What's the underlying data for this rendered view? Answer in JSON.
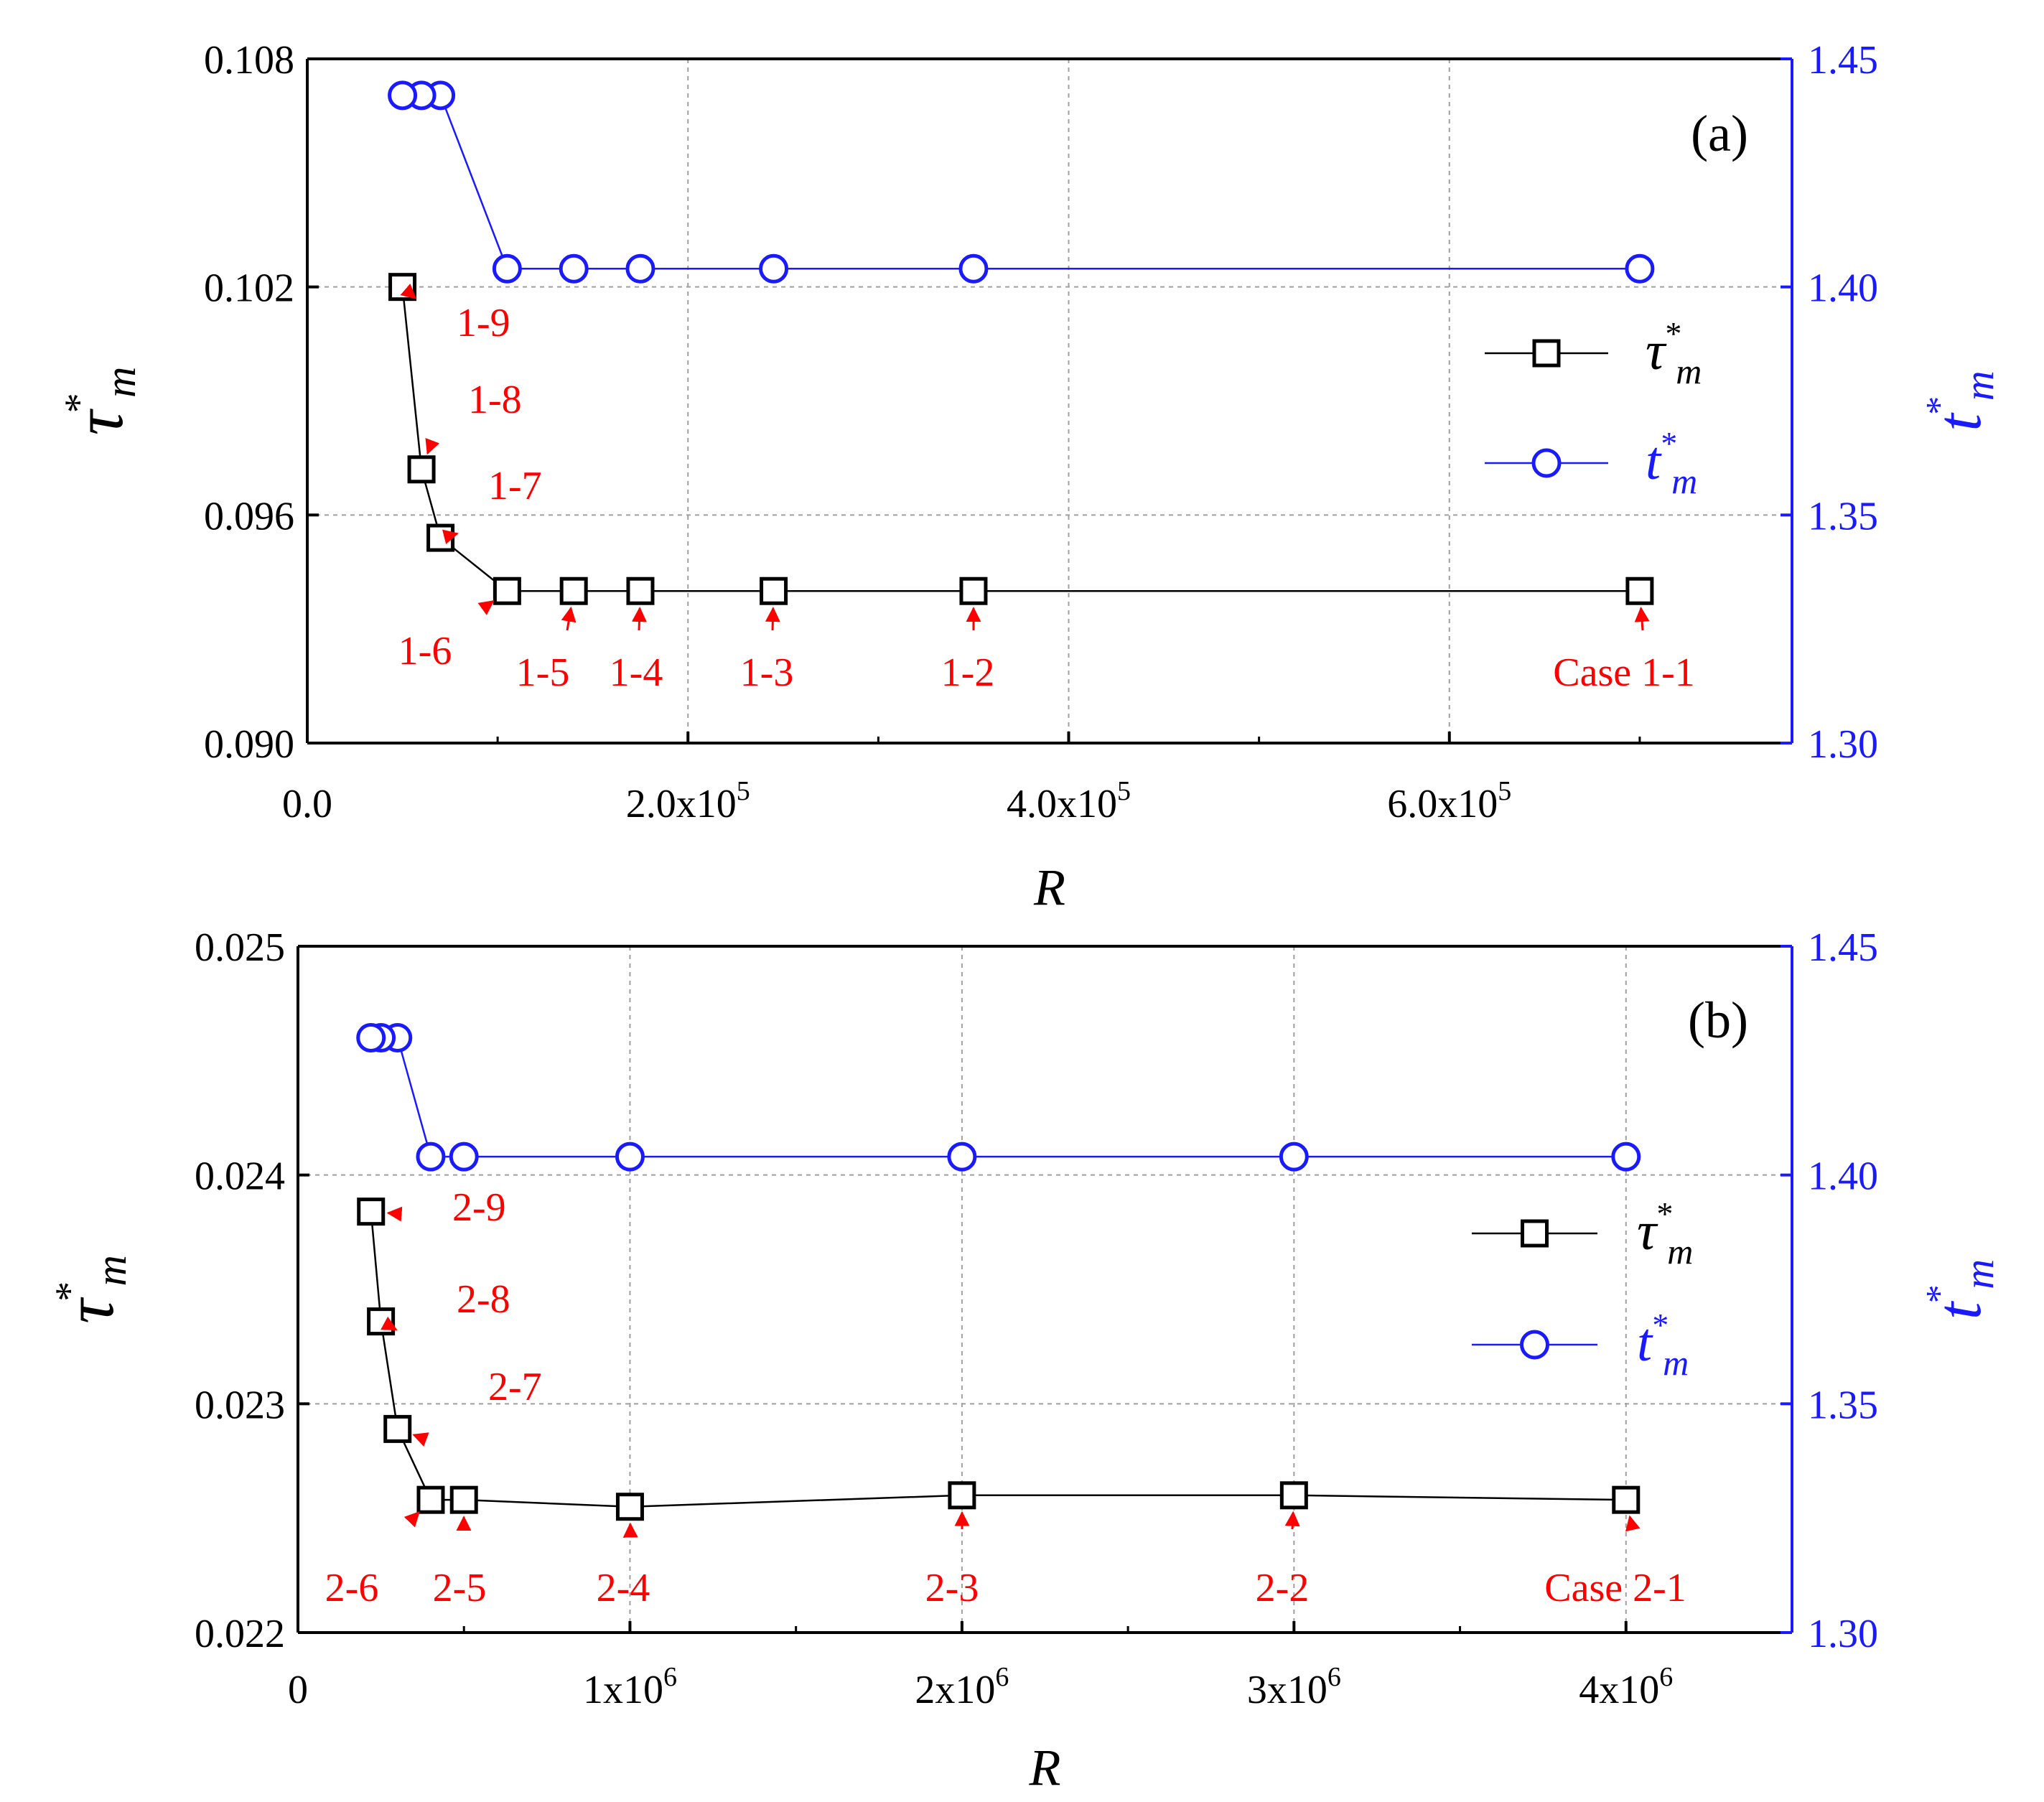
{
  "chart_data": [
    {
      "type": "line",
      "panel_label": "(a)",
      "xlabel": "R",
      "ylabel_left": {
        "symbol": "τ",
        "sup": "*",
        "sub": "m"
      },
      "ylabel_right": {
        "symbol": "t",
        "sup": "*",
        "sub": "m"
      },
      "xlim": [
        0,
        780000
      ],
      "ylim_left": [
        0.09,
        0.108
      ],
      "ylim_right": [
        1.3,
        1.45
      ],
      "x_ticks": [
        {
          "value": 0,
          "mantissa": "0.0",
          "exp": ""
        },
        {
          "value": 200000,
          "mantissa": "2.0x10",
          "exp": "5"
        },
        {
          "value": 400000,
          "mantissa": "4.0x10",
          "exp": "5"
        },
        {
          "value": 600000,
          "mantissa": "6.0x10",
          "exp": "5"
        }
      ],
      "y_ticks_left": [
        "0.090",
        "0.096",
        "0.102",
        "0.108"
      ],
      "y_ticks_right": [
        "1.30",
        "1.35",
        "1.40",
        "1.45"
      ],
      "series": [
        {
          "name": "tau_m",
          "color": "#000000",
          "marker": "square",
          "axis": "left",
          "x": [
            700000,
            350000,
            245000,
            175000,
            140000,
            105000,
            70000,
            60000,
            50000
          ],
          "y": [
            0.094,
            0.094,
            0.094,
            0.094,
            0.094,
            0.094,
            0.0954,
            0.0972,
            0.102
          ]
        },
        {
          "name": "t_m",
          "color": "#1a1aff",
          "marker": "circle",
          "axis": "right",
          "x": [
            700000,
            350000,
            245000,
            175000,
            140000,
            105000,
            70000,
            60000,
            50000
          ],
          "y": [
            1.404,
            1.404,
            1.404,
            1.404,
            1.404,
            1.404,
            1.442,
            1.442,
            1.442
          ]
        }
      ],
      "annotations": [
        {
          "text": "Case 1-1",
          "point": 0
        },
        {
          "text": "1-2",
          "point": 1
        },
        {
          "text": "1-3",
          "point": 2
        },
        {
          "text": "1-4",
          "point": 3
        },
        {
          "text": "1-5",
          "point": 4
        },
        {
          "text": "1-6",
          "point": 5
        },
        {
          "text": "1-7",
          "point": 6
        },
        {
          "text": "1-8",
          "point": 7
        },
        {
          "text": "1-9",
          "point": 8
        }
      ]
    },
    {
      "type": "line",
      "panel_label": "(b)",
      "xlabel": "R",
      "ylabel_left": {
        "symbol": "τ",
        "sup": "*",
        "sub": "m"
      },
      "ylabel_right": {
        "symbol": "t",
        "sup": "*",
        "sub": "m"
      },
      "xlim": [
        0,
        4500000
      ],
      "ylim_left": [
        0.022,
        0.025
      ],
      "ylim_right": [
        1.3,
        1.45
      ],
      "x_ticks": [
        {
          "value": 0,
          "mantissa": "0",
          "exp": ""
        },
        {
          "value": 1000000,
          "mantissa": "1x10",
          "exp": "6"
        },
        {
          "value": 2000000,
          "mantissa": "2x10",
          "exp": "6"
        },
        {
          "value": 3000000,
          "mantissa": "3x10",
          "exp": "6"
        },
        {
          "value": 4000000,
          "mantissa": "4x10",
          "exp": "6"
        }
      ],
      "y_ticks_left": [
        "0.022",
        "0.023",
        "0.024",
        "0.025"
      ],
      "y_ticks_right": [
        "1.30",
        "1.35",
        "1.40",
        "1.45"
      ],
      "series": [
        {
          "name": "tau_m",
          "color": "#000000",
          "marker": "square",
          "axis": "left",
          "x": [
            4000000,
            3000000,
            2000000,
            1000000,
            500000,
            400000,
            300000,
            250000,
            220000
          ],
          "y": [
            0.02258,
            0.0226,
            0.0226,
            0.02255,
            0.02258,
            0.02258,
            0.02289,
            0.02336,
            0.02384
          ]
        },
        {
          "name": "t_m",
          "color": "#1a1aff",
          "marker": "circle",
          "axis": "right",
          "x": [
            4000000,
            3000000,
            2000000,
            1000000,
            500000,
            400000,
            300000,
            250000,
            220000
          ],
          "y": [
            1.404,
            1.404,
            1.404,
            1.404,
            1.404,
            1.404,
            1.43,
            1.43,
            1.43
          ]
        }
      ],
      "annotations": [
        {
          "text": "Case 2-1",
          "point": 0
        },
        {
          "text": "2-2",
          "point": 1
        },
        {
          "text": "2-3",
          "point": 2
        },
        {
          "text": "2-4",
          "point": 3
        },
        {
          "text": "2-5",
          "point": 4
        },
        {
          "text": "2-6",
          "point": 5
        },
        {
          "text": "2-7",
          "point": 6
        },
        {
          "text": "2-8",
          "point": 7
        },
        {
          "text": "2-9",
          "point": 8
        }
      ]
    }
  ]
}
